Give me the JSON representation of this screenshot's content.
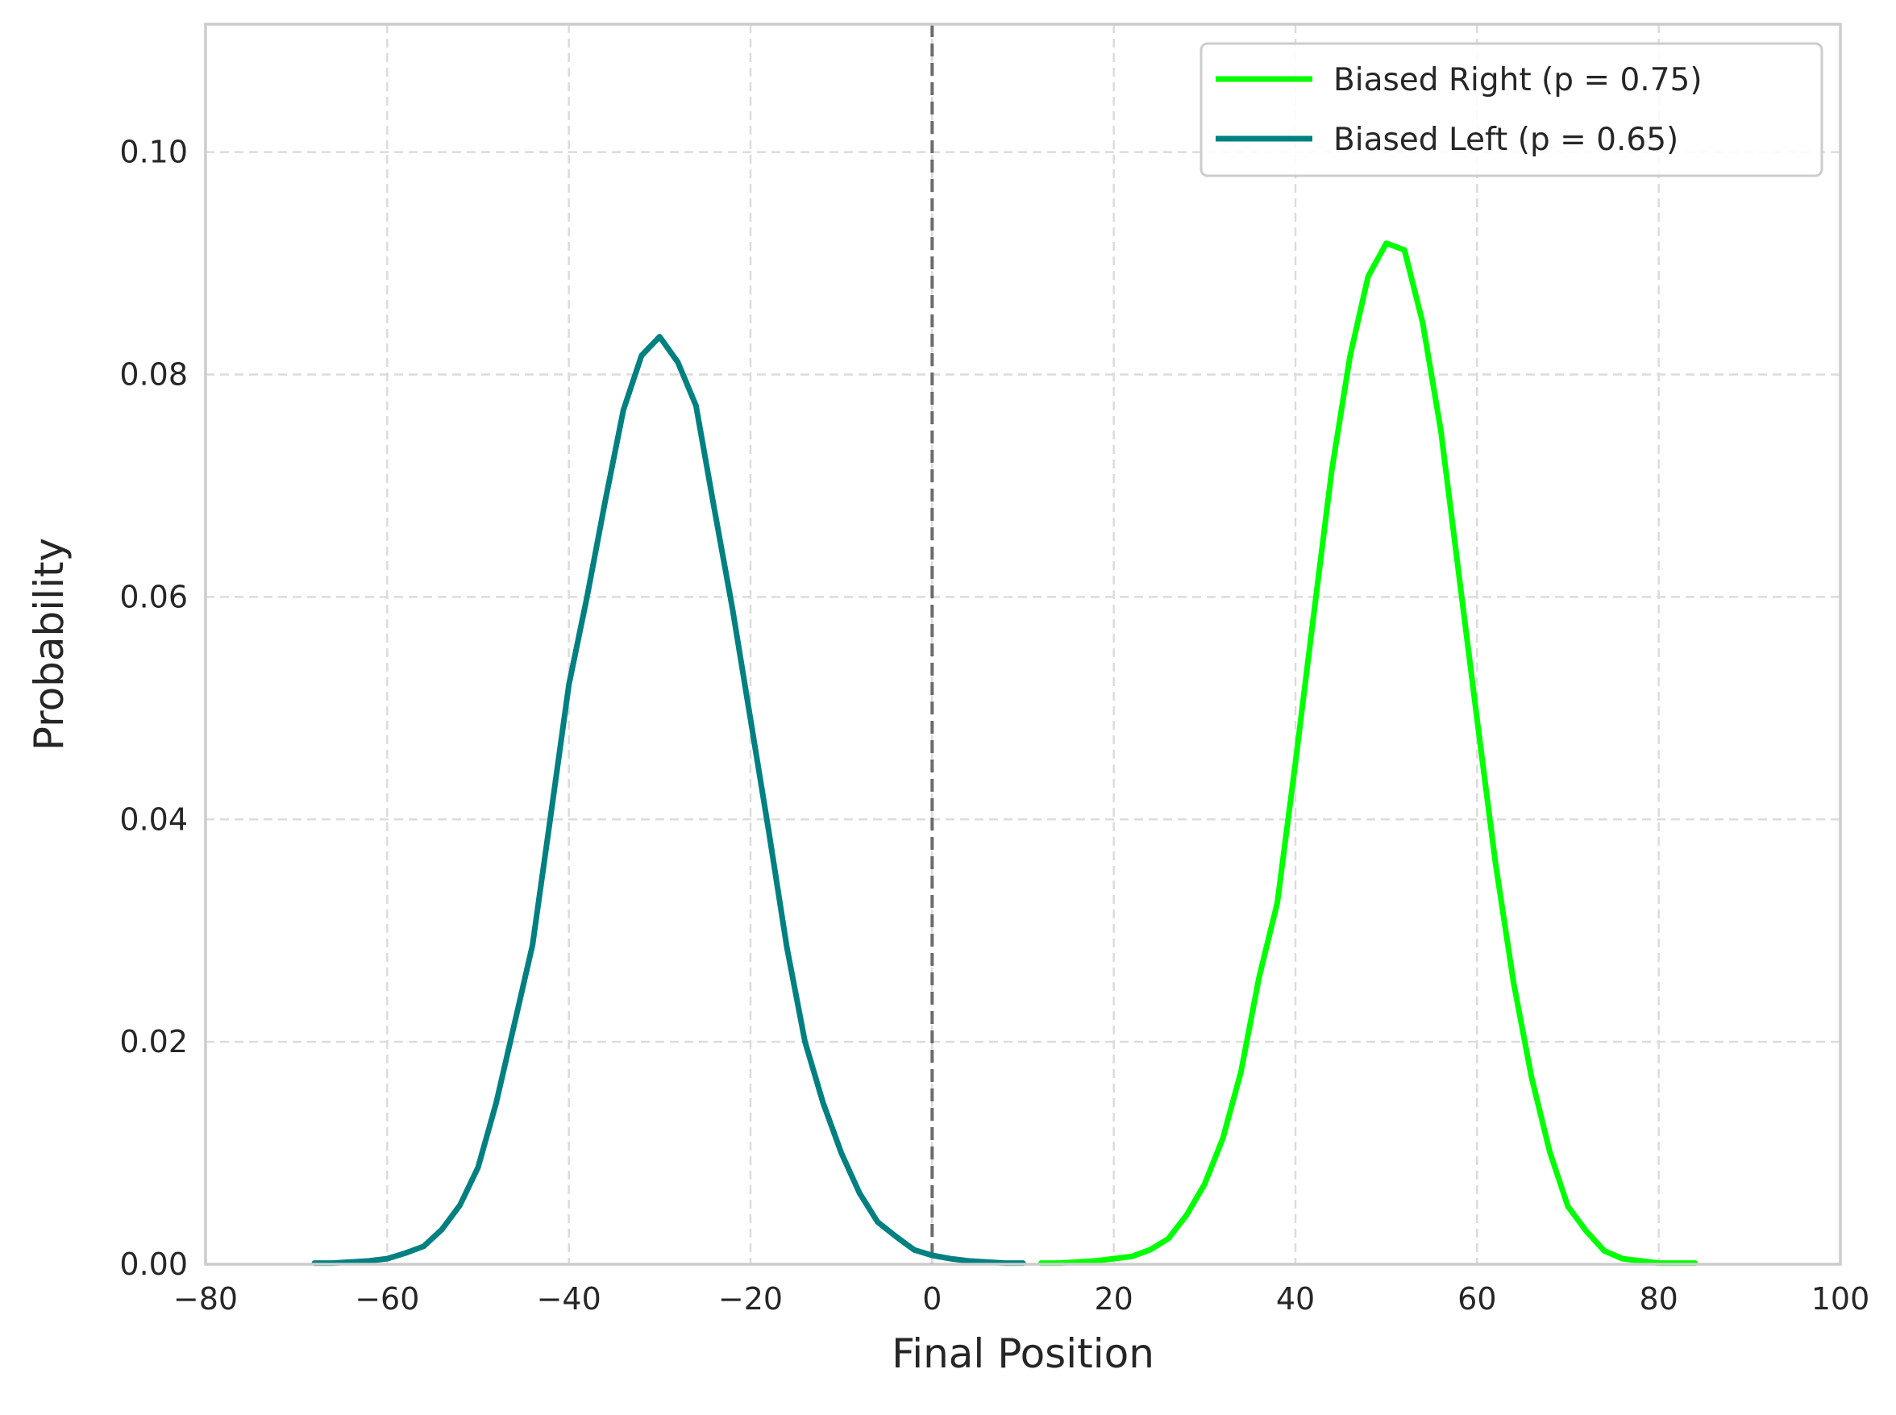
{
  "chart_data": {
    "type": "line",
    "xlabel": "Final Position",
    "ylabel": "Probability",
    "xlim": [
      -80,
      100
    ],
    "ylim": [
      0,
      0.1115
    ],
    "xticks": [
      -80,
      -60,
      -40,
      -20,
      0,
      20,
      40,
      60,
      80,
      100
    ],
    "xtick_labels": [
      "−80",
      "−60",
      "−40",
      "−20",
      "0",
      "20",
      "40",
      "60",
      "80",
      "100"
    ],
    "yticks": [
      0.0,
      0.02,
      0.04,
      0.06,
      0.08,
      0.1
    ],
    "ytick_labels": [
      "0.00",
      "0.02",
      "0.04",
      "0.06",
      "0.08",
      "0.10"
    ],
    "grid": true,
    "legend_position": "top-right",
    "reference_line": {
      "x": 0,
      "style": "dashed",
      "color": "#6b6b6b"
    },
    "series": [
      {
        "name": "Biased Right (p = 0.75)",
        "color": "#00ff00",
        "x": [
          12,
          14,
          16,
          18,
          20,
          22,
          24,
          26,
          28,
          30,
          32,
          34,
          36,
          38,
          40,
          42,
          44,
          46,
          48,
          50,
          52,
          54,
          56,
          58,
          60,
          62,
          64,
          66,
          68,
          70,
          72,
          74,
          76,
          78,
          80,
          82,
          84
        ],
        "y": [
          0.0001,
          0.0001,
          0.0002,
          0.0003,
          0.0005,
          0.0007,
          0.0013,
          0.0023,
          0.0044,
          0.0072,
          0.0113,
          0.0173,
          0.0258,
          0.0325,
          0.0451,
          0.0583,
          0.0714,
          0.0816,
          0.0888,
          0.0918,
          0.0912,
          0.0847,
          0.075,
          0.062,
          0.049,
          0.0362,
          0.0254,
          0.0168,
          0.0101,
          0.0052,
          0.003,
          0.0012,
          0.0005,
          0.0003,
          0.0001,
          0.0001,
          0.0001
        ]
      },
      {
        "name": "Biased Left (p = 0.65)",
        "color": "#008080",
        "x": [
          -68,
          -66,
          -64,
          -62,
          -60,
          -58,
          -56,
          -54,
          -52,
          -50,
          -48,
          -46,
          -44,
          -42,
          -40,
          -38,
          -36,
          -34,
          -32,
          -30,
          -28,
          -26,
          -24,
          -22,
          -20,
          -18,
          -16,
          -14,
          -12,
          -10,
          -8,
          -6,
          -4,
          -2,
          0,
          2,
          4,
          6,
          8,
          10
        ],
        "y": [
          0.0001,
          0.0001,
          0.0002,
          0.0003,
          0.0005,
          0.001,
          0.0016,
          0.0031,
          0.0053,
          0.0087,
          0.0145,
          0.0216,
          0.0287,
          0.0403,
          0.0521,
          0.06,
          0.0686,
          0.0768,
          0.0817,
          0.0834,
          0.0811,
          0.0772,
          0.068,
          0.059,
          0.049,
          0.039,
          0.0285,
          0.02,
          0.0145,
          0.01,
          0.0064,
          0.0038,
          0.0025,
          0.0013,
          0.0008,
          0.0005,
          0.0003,
          0.0002,
          0.0001,
          0.0001
        ]
      }
    ]
  }
}
